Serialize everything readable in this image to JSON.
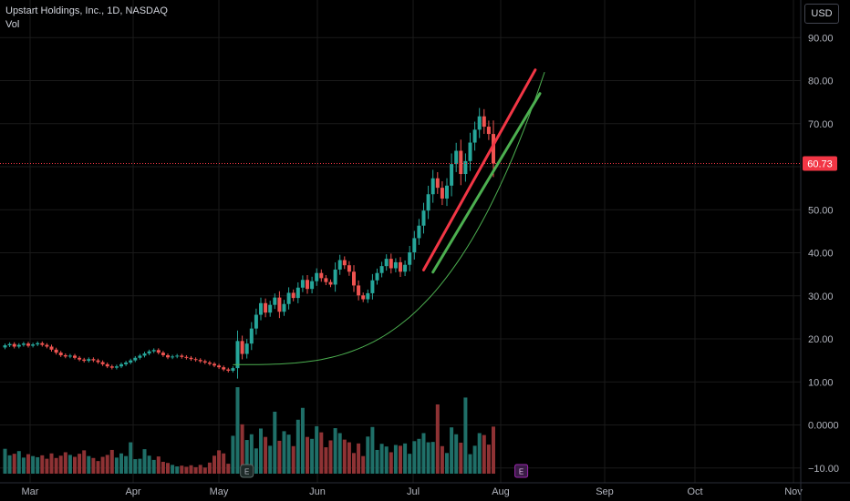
{
  "header": {
    "title": "Upstart Holdings, Inc., 1D, NASDAQ",
    "volume_label": "Vol",
    "currency": "USD"
  },
  "colors": {
    "background": "#000000",
    "up": "#26a69a",
    "down": "#ef5350",
    "up_volume": "#1f6f68",
    "down_volume": "#8e3234",
    "resistance_line": "#f23645",
    "support_line": "#4caf50",
    "curve": "#4caf50",
    "last_price": "#f23645",
    "grid": "#1a1a1a"
  },
  "chart_data": {
    "type": "candlestick",
    "symbol": "Upstart Holdings, Inc.",
    "interval": "1D",
    "exchange": "NASDAQ",
    "last_price": 60.73,
    "last_price_label": "60.73",
    "y_ticks": [
      "90.00",
      "80.00",
      "70.00",
      "60.00",
      "50.00",
      "40.00",
      "30.00",
      "20.00",
      "10.00",
      "0.0000",
      "−10.00"
    ],
    "y_tick_values": [
      90,
      80,
      70,
      60,
      50,
      40,
      30,
      20,
      10,
      0,
      -10
    ],
    "x_ticks": [
      "Mar",
      "Apr",
      "May",
      "Jun",
      "Jul",
      "Aug",
      "Sep",
      "Oct",
      "Nov"
    ],
    "ylim": [
      -12,
      100
    ],
    "price_start": 18.0,
    "closes": [
      18.5,
      18.8,
      18.2,
      18.6,
      18.9,
      18.4,
      18.7,
      19.0,
      18.6,
      18.2,
      17.5,
      16.8,
      16.2,
      15.9,
      16.1,
      15.6,
      15.2,
      14.9,
      15.3,
      15.0,
      14.6,
      14.1,
      13.6,
      13.3,
      13.6,
      14.1,
      14.5,
      15.0,
      15.6,
      16.1,
      16.6,
      17.1,
      17.4,
      16.8,
      16.2,
      15.7,
      15.9,
      16.1,
      15.8,
      15.6,
      15.3,
      15.1,
      14.8,
      14.5,
      14.2,
      13.8,
      13.4,
      12.9,
      12.6,
      13.2,
      19.5,
      16.5,
      18.9,
      22.4,
      25.6,
      28.3,
      26.1,
      27.9,
      29.6,
      26.3,
      28.1,
      30.7,
      29.5,
      31.9,
      33.7,
      31.6,
      33.4,
      35.3,
      34.1,
      33.2,
      32.6,
      36.1,
      38.3,
      37.1,
      35.6,
      32.4,
      30.1,
      29.2,
      30.6,
      33.6,
      35.3,
      36.9,
      38.6,
      36.4,
      37.8,
      35.6,
      37.2,
      40.1,
      43.4,
      46.3,
      49.8,
      53.6,
      57.3,
      55.1,
      52.6,
      55.6,
      60.6,
      63.7,
      58.3,
      61.3,
      65.6,
      68.6,
      71.7,
      69.3,
      67.6,
      60.73
    ],
    "volumes": [
      6.5,
      4.8,
      5.2,
      5.9,
      4.2,
      5.1,
      4.6,
      4.3,
      4.8,
      3.9,
      5.3,
      4.1,
      4.7,
      5.6,
      4.9,
      4.4,
      5.2,
      6.1,
      4.6,
      4.1,
      3.3,
      4.4,
      4.9,
      6.2,
      4.2,
      5.3,
      4.6,
      8.2,
      3.8,
      3.9,
      6.4,
      4.7,
      3.6,
      4.5,
      3.1,
      2.8,
      2.3,
      1.9,
      2.1,
      1.8,
      2.2,
      1.7,
      2.3,
      1.6,
      2.9,
      4.7,
      6.1,
      5.3,
      2.6,
      9.9,
      22.6,
      12.9,
      8.8,
      10.3,
      6.6,
      11.8,
      9.6,
      7.3,
      16.2,
      8.6,
      11.1,
      10.2,
      7.2,
      14.1,
      17.2,
      9.6,
      9.1,
      12.4,
      10.8,
      6.9,
      8.7,
      11.9,
      10.6,
      8.9,
      8.2,
      5.4,
      7.9,
      4.6,
      9.7,
      12.2,
      6.2,
      7.8,
      7.1,
      5.6,
      7.5,
      7.3,
      7.9,
      5.2,
      8.5,
      9.1,
      10.6,
      8.2,
      8.3,
      18.1,
      7.2,
      5.4,
      12.1,
      10.3,
      8.1,
      19.9,
      5.1,
      7.3,
      10.6,
      10.1,
      7.6,
      12.3
    ]
  },
  "drawings": {
    "resistance": {
      "from": [
        36.0,
        90
      ],
      "to": [
        82.5,
        114
      ]
    },
    "support": {
      "from": [
        35.5,
        92
      ],
      "to": [
        77.0,
        115
      ]
    },
    "curve": {
      "from": [
        14.0,
        49
      ],
      "to": [
        82.0,
        116
      ]
    }
  },
  "events": {
    "earnings_may": "E",
    "earnings_aug": "E"
  }
}
